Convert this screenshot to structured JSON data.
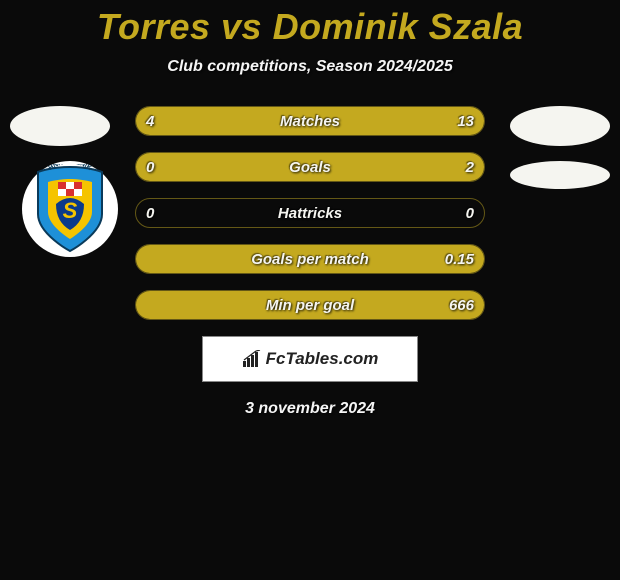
{
  "title": "Torres vs Dominik Szala",
  "subtitle": "Club competitions, Season 2024/2025",
  "colors": {
    "accent": "#c4a91f",
    "bg": "#0a0a0a",
    "text": "#f5f5f0",
    "badge_blue": "#1e90d8",
    "badge_yellow": "#f5c400",
    "badge_red": "#d93030"
  },
  "bars": [
    {
      "label": "Matches",
      "left_val": "4",
      "right_val": "13",
      "left_pct": 22,
      "right_pct": 78
    },
    {
      "label": "Goals",
      "left_val": "0",
      "right_val": "2",
      "left_pct": 0,
      "right_pct": 100
    },
    {
      "label": "Hattricks",
      "left_val": "0",
      "right_val": "0",
      "left_pct": 0,
      "right_pct": 0
    },
    {
      "label": "Goals per match",
      "left_val": "",
      "right_val": "0.15",
      "left_pct": 0,
      "right_pct": 100
    },
    {
      "label": "Min per goal",
      "left_val": "",
      "right_val": "666",
      "left_pct": 0,
      "right_pct": 100
    }
  ],
  "brand": "FcTables.com",
  "date": "3 november 2024",
  "club_badge_text": "HNK ŠIBENIK"
}
